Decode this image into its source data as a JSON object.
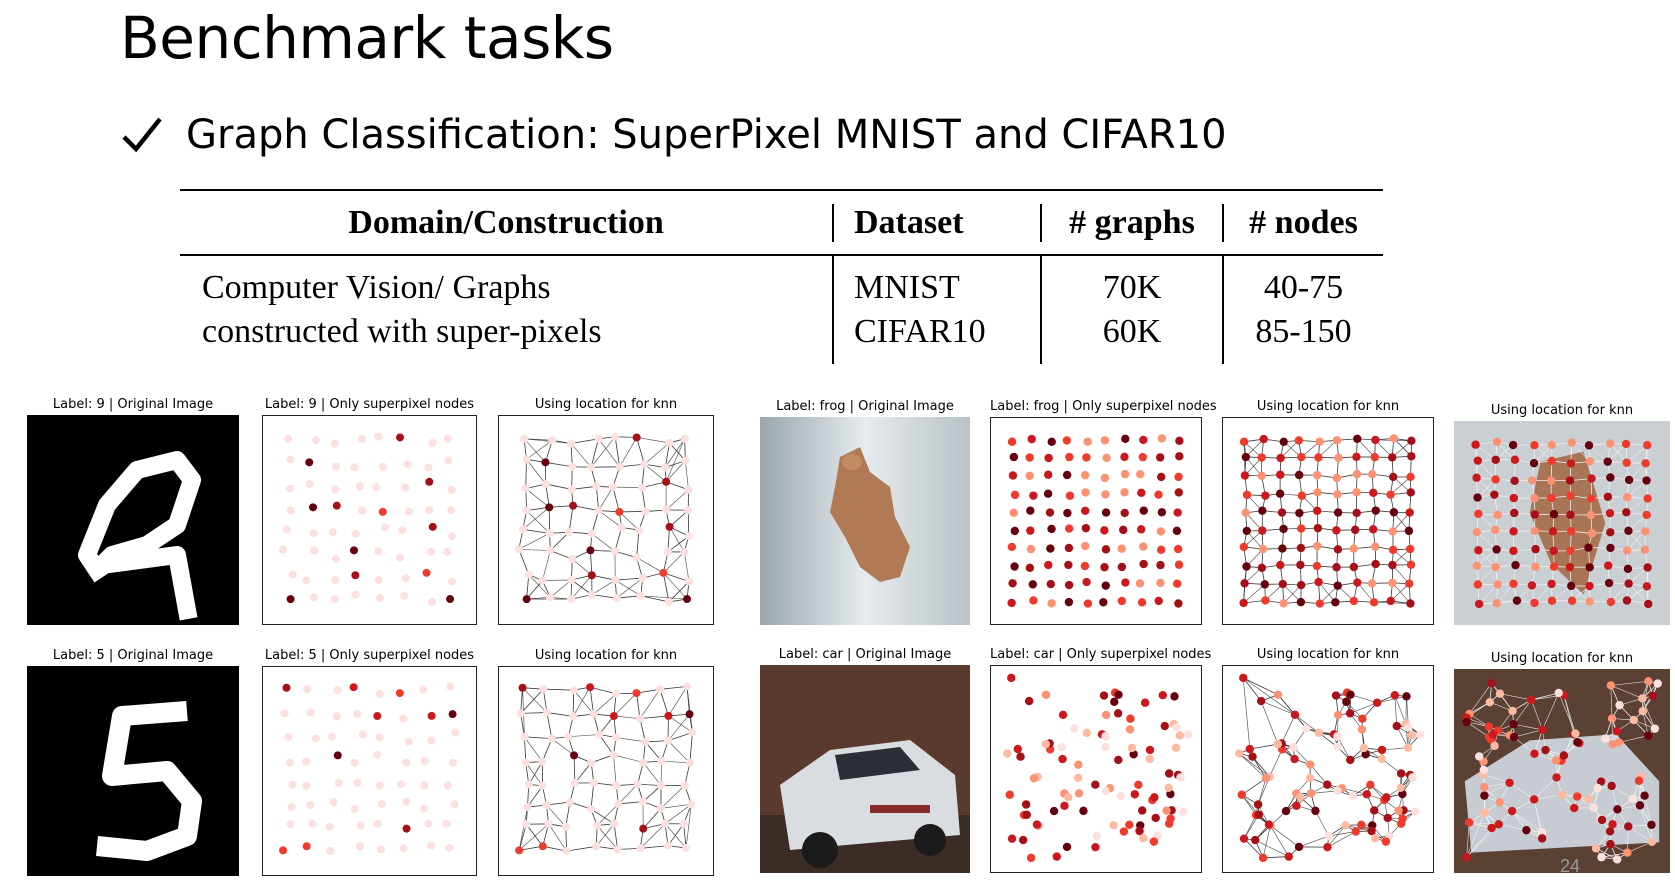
{
  "slide": {
    "title": "Benchmark tasks",
    "bullet": "Graph Classification: SuperPixel MNIST and CIFAR10",
    "page_number": "24"
  },
  "table": {
    "headers": [
      "Domain/Construction",
      "Dataset",
      "# graphs",
      "# nodes"
    ],
    "domain_lines": [
      "Computer Vision/ Graphs",
      "constructed with super-pixels"
    ],
    "rows": [
      {
        "dataset": "MNIST",
        "graphs": "70K",
        "nodes": "40-75"
      },
      {
        "dataset": "CIFAR10",
        "graphs": "60K",
        "nodes": "85-150"
      }
    ]
  },
  "panels": {
    "mnist9": [
      "Label: 9 | Original Image",
      "Label: 9 | Only superpixel nodes",
      "Using location for knn"
    ],
    "mnist5": [
      "Label: 5 | Original Image",
      "Label: 5 | Only superpixel nodes",
      "Using location for knn"
    ],
    "frog": [
      "Label: frog | Original Image",
      "Label: frog | Only superpixel nodes",
      "Using location for knn",
      "Using location for knn"
    ],
    "car": [
      "Label: car | Original Image",
      "Label: car | Only superpixel nodes",
      "Using location for knn",
      "Using location for knn"
    ]
  },
  "colors": {
    "dark_red": "#67000d",
    "red": "#e34a33",
    "pale": "#fde0dd",
    "mnist_bg": "#000000"
  }
}
